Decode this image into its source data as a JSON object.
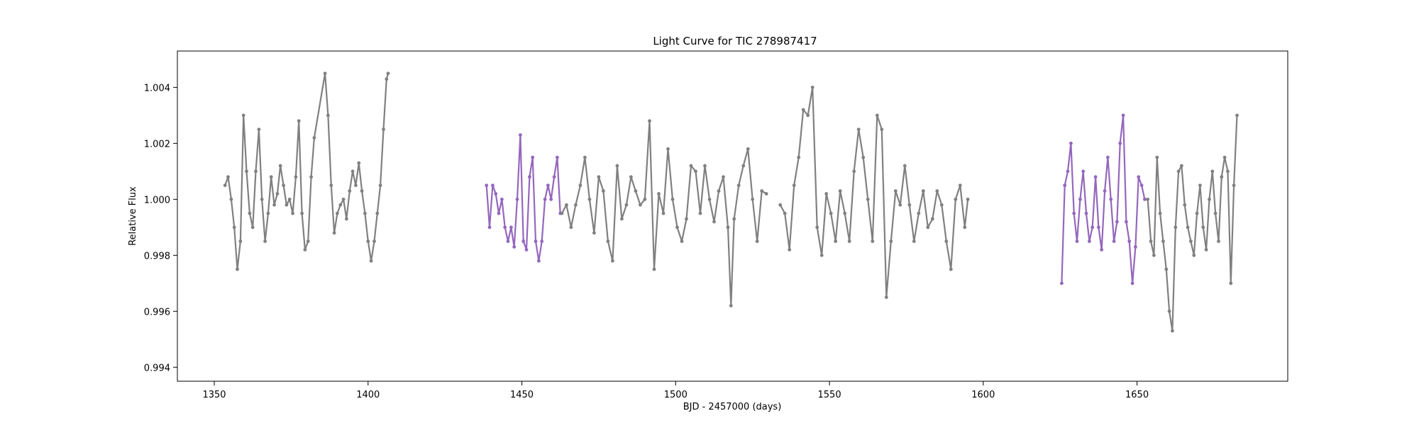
{
  "chart_data": {
    "type": "scatter",
    "title": "Light Curve for TIC 278987417",
    "xlabel": "BJD - 2457000 (days)",
    "ylabel": "Relative Flux",
    "xlim": [
      1338,
      1699
    ],
    "ylim": [
      0.9935,
      1.0053
    ],
    "xticks": [
      1350,
      1400,
      1450,
      1500,
      1550,
      1600,
      1650
    ],
    "yticks": [
      0.994,
      0.996,
      0.998,
      1.0,
      1.002,
      1.004
    ],
    "ytick_labels": [
      "0.994",
      "0.996",
      "0.998",
      "1.000",
      "1.002",
      "1.004"
    ],
    "grid": false,
    "legend": "none",
    "colors": {
      "grey": "#808080",
      "purple": "#9467bd"
    },
    "series": [
      {
        "color": "#808080",
        "x": [
          1353.5,
          1354.5,
          1355.5,
          1356.5,
          1357.5,
          1358.5,
          1359.5,
          1360.5,
          1361.5,
          1362.5,
          1363.5,
          1364.5,
          1365.5,
          1366.5,
          1367.5,
          1368.5,
          1369.5,
          1370.5,
          1371.5,
          1372.5,
          1373.5,
          1374.5,
          1375.5,
          1376.5,
          1377.5,
          1378.5,
          1379.5,
          1380.5,
          1381.5,
          1382.5,
          1386.0,
          1387.0,
          1388.0,
          1389.0,
          1390.0,
          1391.0,
          1392.0,
          1393.0,
          1394.0,
          1395.0,
          1396.0,
          1397.0,
          1398.0,
          1399.0,
          1400.0,
          1401.0,
          1402.0,
          1403.0,
          1404.0,
          1405.0,
          1406.0,
          1406.5
        ],
        "y": [
          1.0005,
          1.0008,
          1.0,
          0.999,
          0.9975,
          0.9985,
          1.003,
          1.001,
          0.9995,
          0.999,
          1.001,
          1.0025,
          1.0,
          0.9985,
          0.9995,
          1.0008,
          0.9998,
          1.0002,
          1.0012,
          1.0005,
          0.9998,
          1.0,
          0.9995,
          1.0008,
          1.0028,
          0.9995,
          0.9982,
          0.9985,
          1.0008,
          1.0022,
          1.0045,
          1.003,
          1.0005,
          0.9988,
          0.9995,
          0.9998,
          1.0,
          0.9993,
          1.0003,
          1.001,
          1.0005,
          1.0013,
          1.0003,
          0.9995,
          0.9985,
          0.9978,
          0.9985,
          0.9995,
          1.0005,
          1.0025,
          1.0043,
          1.0045
        ]
      },
      {
        "color": "#9467bd",
        "x": [
          1438.5,
          1439.5,
          1440.5,
          1441.5,
          1442.5,
          1443.5,
          1444.5,
          1445.5,
          1446.5,
          1447.5,
          1448.5,
          1449.5,
          1450.5,
          1451.5,
          1452.5,
          1453.5,
          1454.5,
          1455.5,
          1456.5,
          1457.5,
          1458.5,
          1459.5,
          1460.5,
          1461.5,
          1462.5
        ],
        "y": [
          1.0005,
          0.999,
          1.0005,
          1.0002,
          0.9995,
          1.0,
          0.999,
          0.9985,
          0.999,
          0.9983,
          1.0,
          1.0023,
          0.9985,
          0.9982,
          1.0008,
          1.0015,
          0.9985,
          0.9978,
          0.9985,
          1.0,
          1.0005,
          1.0,
          1.0008,
          1.0015,
          0.9995
        ]
      },
      {
        "color": "#808080",
        "x": [
          1463.0,
          1464.5,
          1466.0,
          1467.5,
          1469.0,
          1470.5,
          1472.0,
          1473.5,
          1475.0,
          1476.5,
          1478.0,
          1479.5,
          1481.0,
          1482.5,
          1484.0,
          1485.5,
          1487.0,
          1488.5,
          1490.0,
          1491.5,
          1493.0,
          1494.5,
          1496.0,
          1497.5,
          1499.0,
          1500.5,
          1502.0,
          1503.5,
          1505.0,
          1506.5,
          1508.0,
          1509.5,
          1511.0,
          1512.5,
          1514.0,
          1515.5,
          1517.0,
          1518.0,
          1519.0,
          1520.5,
          1522.0,
          1523.5,
          1525.0,
          1526.5,
          1528.0,
          1529.5
        ],
        "y": [
          0.9995,
          0.9998,
          0.999,
          0.9998,
          1.0005,
          1.0015,
          1.0,
          0.9988,
          1.0008,
          1.0003,
          0.9985,
          0.9978,
          1.0012,
          0.9993,
          0.9998,
          1.0008,
          1.0003,
          0.9998,
          1.0,
          1.0028,
          0.9975,
          1.0002,
          0.9995,
          1.0018,
          1.0,
          0.999,
          0.9985,
          0.9993,
          1.0012,
          1.001,
          0.9995,
          1.0012,
          1.0,
          0.9992,
          1.0003,
          1.0008,
          0.999,
          0.9962,
          0.9993,
          1.0005,
          1.0012,
          1.0018,
          1.0,
          0.9985,
          1.0003,
          1.0002
        ]
      },
      {
        "color": "#808080",
        "x": [
          1534.0,
          1535.5,
          1537.0,
          1538.5,
          1540.0,
          1541.5,
          1543.0,
          1544.5,
          1546.0,
          1547.5,
          1549.0,
          1550.5,
          1552.0,
          1553.5,
          1555.0,
          1556.5,
          1558.0,
          1559.5,
          1561.0,
          1562.5,
          1564.0,
          1565.5,
          1567.0,
          1568.5,
          1570.0,
          1571.5,
          1573.0,
          1574.5,
          1576.0,
          1577.5,
          1579.0,
          1580.5,
          1582.0,
          1583.5,
          1585.0,
          1586.5,
          1588.0,
          1589.5,
          1591.0,
          1592.5,
          1594.0,
          1595.0
        ],
        "y": [
          0.9998,
          0.9995,
          0.9982,
          1.0005,
          1.0015,
          1.0032,
          1.003,
          1.004,
          0.999,
          0.998,
          1.0002,
          0.9995,
          0.9985,
          1.0003,
          0.9995,
          0.9985,
          1.001,
          1.0025,
          1.0015,
          1.0,
          0.9985,
          1.003,
          1.0025,
          0.9965,
          0.9985,
          1.0003,
          0.9998,
          1.0012,
          0.9998,
          0.9985,
          0.9995,
          1.0003,
          0.999,
          0.9993,
          1.0003,
          0.9998,
          0.9985,
          0.9975,
          1.0,
          1.0005,
          0.999,
          1.0
        ]
      },
      {
        "color": "#9467bd",
        "x": [
          1625.5,
          1626.5,
          1627.5,
          1628.5,
          1629.5,
          1630.5,
          1631.5,
          1632.5,
          1633.5,
          1634.5,
          1635.5,
          1636.5,
          1637.5,
          1638.5,
          1639.5,
          1640.5,
          1641.5,
          1642.5,
          1643.5,
          1644.5,
          1645.5,
          1646.5,
          1647.5,
          1648.5,
          1649.5,
          1650.5,
          1651.5,
          1652.5
        ],
        "y": [
          0.997,
          1.0005,
          1.001,
          1.002,
          0.9995,
          0.9985,
          1.0,
          1.001,
          0.9995,
          0.9985,
          0.999,
          1.0008,
          0.999,
          0.9982,
          1.0003,
          1.0015,
          1.0,
          0.9985,
          0.9992,
          1.002,
          1.003,
          0.9992,
          0.9985,
          0.997,
          0.9983,
          1.0008,
          1.0005,
          1.0
        ]
      },
      {
        "color": "#808080",
        "x": [
          1653.5,
          1654.5,
          1655.5,
          1656.5,
          1657.5,
          1658.5,
          1659.5,
          1660.5,
          1661.5,
          1662.5,
          1663.5,
          1664.5,
          1665.5,
          1666.5,
          1667.5,
          1668.5,
          1669.5,
          1670.5,
          1671.5,
          1672.5,
          1673.5,
          1674.5,
          1675.5,
          1676.5,
          1677.5,
          1678.5,
          1679.5,
          1680.5,
          1681.5,
          1682.5
        ],
        "y": [
          1.0,
          0.9985,
          0.998,
          1.0015,
          0.9995,
          0.9985,
          0.9975,
          0.996,
          0.9953,
          0.999,
          1.001,
          1.0012,
          0.9998,
          0.999,
          0.9985,
          0.998,
          0.9995,
          1.0005,
          0.999,
          0.9982,
          1.0,
          1.001,
          0.9995,
          0.9985,
          1.0008,
          1.0015,
          1.001,
          0.997,
          1.0005,
          1.003
        ]
      }
    ]
  }
}
